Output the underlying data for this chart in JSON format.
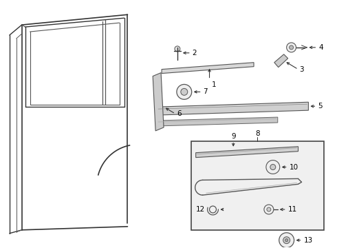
{
  "bg_color": "#ffffff",
  "fig_width": 4.9,
  "fig_height": 3.6,
  "dpi": 100,
  "line_color": "#333333",
  "label_fontsize": 7.5
}
